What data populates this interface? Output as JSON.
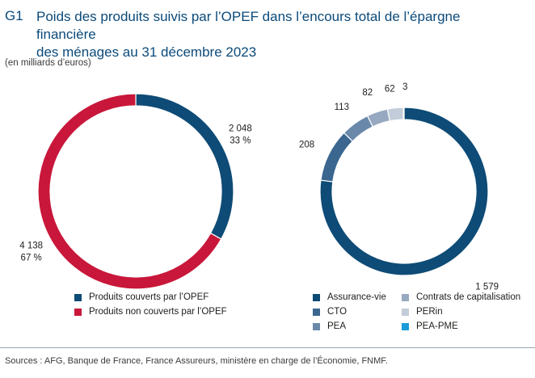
{
  "figure_label": "G1",
  "title_line1": "Poids des produits suivis par l’OPEF dans l’encours total de l’épargne financière",
  "title_line2": "des ménages au 31 décembre 2023",
  "subtitle": "(en milliards d’euros)",
  "source": "Sources : AFG, Banque de France, France Assureurs, ministère en charge de l’Économie, FNMF.",
  "colors": {
    "covered": "#0e4b76",
    "not_covered": "#c8173a",
    "assurance_vie": "#0e4b76",
    "cto": "#3b6690",
    "pea": "#6a89aa",
    "contrats": "#97a9c0",
    "perin": "#c3cdd9",
    "pea_pme": "#1a9cd8"
  },
  "chart_data": [
    {
      "type": "pie",
      "variant": "donut",
      "slices": [
        {
          "key": "covered",
          "label": "Produits couverts par l’OPEF",
          "value": 2048,
          "value_text": "2 048",
          "pct_text": "33 %"
        },
        {
          "key": "not_covered",
          "label": "Produits non couverts par l’OPEF",
          "value": 4138,
          "value_text": "4 138",
          "pct_text": "67 %"
        }
      ]
    },
    {
      "type": "pie",
      "variant": "donut",
      "slices": [
        {
          "key": "assurance_vie",
          "label": "Assurance-vie",
          "value": 1579,
          "value_text": "1 579"
        },
        {
          "key": "cto",
          "label": "CTO",
          "value": 208,
          "value_text": "208"
        },
        {
          "key": "pea",
          "label": "PEA",
          "value": 113,
          "value_text": "113"
        },
        {
          "key": "contrats",
          "label": "Contrats de capitalisation",
          "value": 82,
          "value_text": "82"
        },
        {
          "key": "perin",
          "label": "PERin",
          "value": 62,
          "value_text": "62"
        },
        {
          "key": "pea_pme",
          "label": "PEA-PME",
          "value": 3,
          "value_text": "3"
        }
      ]
    }
  ]
}
